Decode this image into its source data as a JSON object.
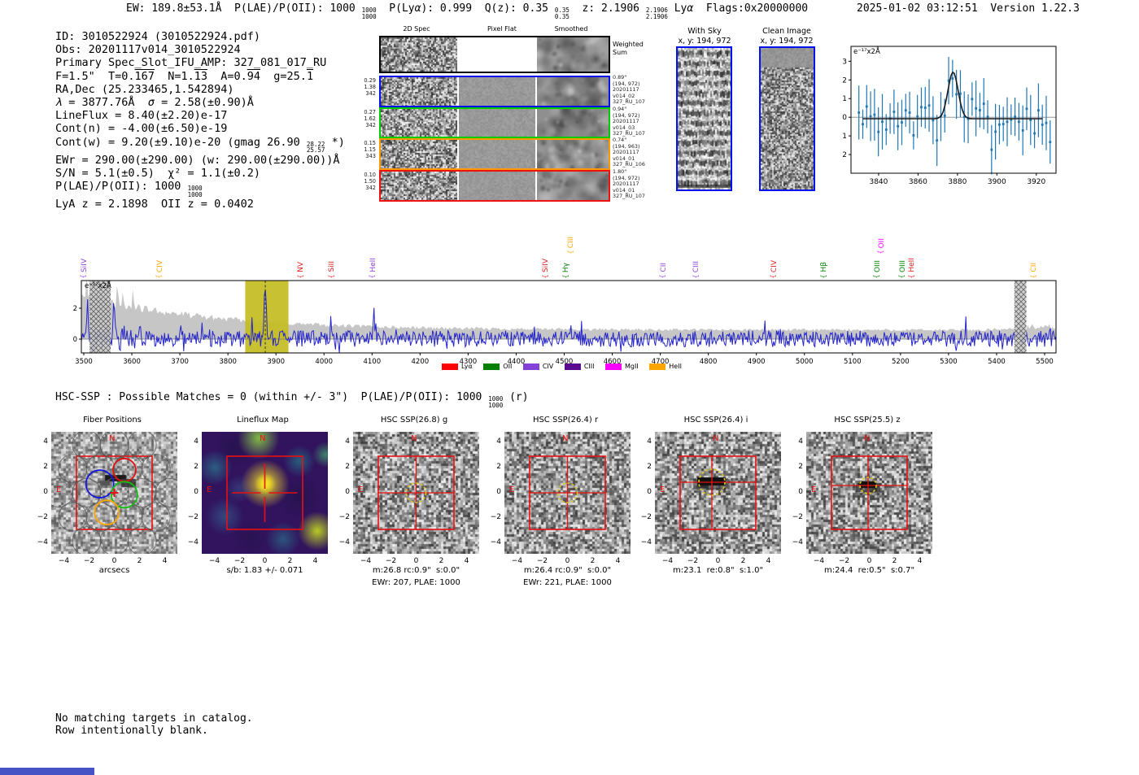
{
  "header": {
    "left_segments": [
      {
        "t": "EW: 189.8±53.1Å  P(LAE)/P(OII): 1000 "
      },
      {
        "f": [
          "1000",
          "1000"
        ]
      },
      {
        "t": "  P(Ly"
      },
      {
        "t": "α",
        "s": "i"
      },
      {
        "t": "): 0.999  Q(z): 0.35 "
      },
      {
        "f": [
          "0.35",
          "0.35"
        ]
      },
      {
        "t": "  z: 2.1906 "
      },
      {
        "f": [
          "2.1906",
          "2.1906"
        ]
      },
      {
        "t": " Ly"
      },
      {
        "t": "α",
        "s": "i"
      },
      {
        "t": "  Flags:0x20000000"
      }
    ],
    "right": "2025-01-02 03:12:51  Version 1.22.3"
  },
  "info_lines": [
    [
      {
        "t": "ID: 3010522924 (3010522924.pdf)"
      }
    ],
    [
      {
        "t": "Obs: 20201117v014_3010522924"
      }
    ],
    [
      {
        "t": "Primary Spec_Slot_IFU_AMP: 327_081_017_RU"
      }
    ],
    [
      {
        "t": "F=1.5\"  T=0."
      },
      {
        "t": "167",
        "s": "o"
      },
      {
        "t": "  N=1."
      },
      {
        "t": "13",
        "s": "o"
      },
      {
        "t": "  A=0."
      },
      {
        "t": "94",
        "s": "o"
      },
      {
        "t": "  g=25."
      },
      {
        "t": "1",
        "s": "o"
      }
    ],
    [
      {
        "t": "RA,Dec (25.233465,1.542894)"
      }
    ],
    [
      {
        "t": "λ",
        "s": "i"
      },
      {
        "t": " = 3877.76Å  "
      },
      {
        "t": "σ",
        "s": "i"
      },
      {
        "t": " = 2.58(±0.90)Å"
      }
    ],
    [
      {
        "t": "LineFlux = 8.40(±2.20)e-17"
      }
    ],
    [
      {
        "t": "Cont(n) = -4.00(±6.50)e-19"
      }
    ],
    [
      {
        "t": "Cont(w) = 9.20(±9.10)e-20 (gmag 26.90 "
      },
      {
        "f": [
          "28.22",
          "25.57"
        ]
      },
      {
        "t": " *)"
      }
    ],
    [
      {
        "t": "EWr = 290.00(±290.00) (w: 290.00(±290.00))Å"
      }
    ],
    [
      {
        "t": "S/N = 5.1(±0.5)  χ² = 1.1(±0.2)"
      }
    ],
    [
      {
        "t": "P(LAE)/P(OII): 1000 "
      },
      {
        "f": [
          "1000",
          "1000"
        ]
      }
    ],
    [
      {
        "t": "LyA z = 2.1898  OII z = 0.0402"
      }
    ]
  ],
  "cutouts": {
    "col_titles": [
      "2D Spec",
      "Pixel Flat",
      "Smoothed"
    ],
    "weighted_sum": [
      "Weighted",
      "Sum"
    ],
    "rows": [
      {
        "border": "#000000",
        "left": [],
        "right": []
      },
      {
        "border": "#0011ee",
        "left": [
          "0.29",
          "1.38",
          "342"
        ],
        "right": [
          "0.89\"",
          "(194, 972)",
          "20201117",
          "v014_02",
          "327_RU_107"
        ]
      },
      {
        "border": "#00cc00",
        "left": [
          "0.27",
          "1.62",
          "342"
        ],
        "right": [
          "0.94\"",
          "(194, 972)",
          "20201117",
          "v014_03",
          "327_RU_107"
        ]
      },
      {
        "border": "#ff9900",
        "left": [
          "0.15",
          "1.15",
          "343"
        ],
        "right": [
          "0.74\"",
          "(194, 963)",
          "20201117",
          "v014_01",
          "327_RU_106"
        ]
      },
      {
        "border": "#ee1111",
        "left": [
          "0.10",
          "1.50",
          "342"
        ],
        "right": [
          "1.80\"",
          "(194, 972)",
          "20201117",
          "v014_01",
          "327_RU_107"
        ]
      }
    ]
  },
  "sky_panels": [
    {
      "title": "With Sky",
      "subtitle": "x, y: 194, 972",
      "pattern": "stripes"
    },
    {
      "title": "Clean Image",
      "subtitle": "x, y: 194, 972",
      "pattern": "noise"
    }
  ],
  "chart_data": [
    {
      "id": "zoom_fit",
      "type": "scatter",
      "title": "emission line zoom with gaussian fit",
      "unit_label": "e⁻¹⁷x2Å",
      "xlim": [
        3826,
        3930
      ],
      "ylim": [
        -3.0,
        3.8
      ],
      "xticks": [
        3840,
        3860,
        3880,
        3900,
        3920
      ],
      "yticks": [
        -2,
        -1,
        0,
        1,
        2,
        3
      ],
      "fit": {
        "center": 3877.76,
        "sigma": 2.58,
        "amplitude": 2.5,
        "baseline": -0.08,
        "x_start": 3832,
        "x_end": 3924
      },
      "point_color": "#1f77b4",
      "fit_color": "#1a1a1a"
    },
    {
      "id": "full_spectrum",
      "type": "line",
      "title": "full 1D spectrum",
      "unit_label": "e⁻¹⁷x2Å",
      "xlim": [
        3494,
        5524
      ],
      "ylim": [
        -0.95,
        3.75
      ],
      "xticks": [
        3500,
        3600,
        3700,
        3800,
        3900,
        4000,
        4100,
        4200,
        4300,
        4400,
        4500,
        4600,
        4700,
        4800,
        4900,
        5000,
        5100,
        5200,
        5300,
        5400,
        5500
      ],
      "yticks": [
        0,
        2
      ],
      "primary_peak": {
        "x": 3877.76,
        "height": 3.1
      },
      "highlight_band": {
        "x0": 3836,
        "x1": 3926,
        "color": "#c3bc20",
        "dashed_center": 3877.76
      },
      "masked_regions": [
        [
          3512,
          3556
        ],
        [
          5437,
          5462
        ]
      ],
      "line_labels": [
        {
          "text": "SiIV",
          "x": 3505,
          "color": "#8b45d6",
          "tier": 0
        },
        {
          "text": "CIV",
          "x": 3662,
          "color": "#ffa500",
          "tier": 0
        },
        {
          "text": "NV",
          "x": 3956,
          "color": "#dd2222",
          "tier": 0
        },
        {
          "text": "SiII",
          "x": 4020,
          "color": "#dd2222",
          "tier": 0
        },
        {
          "text": "HeII",
          "x": 4106,
          "color": "#8b45d6",
          "tier": 0
        },
        {
          "text": "SiIV",
          "x": 4466,
          "color": "#dd2222",
          "tier": 0
        },
        {
          "text": "Hγ",
          "x": 4508,
          "color": "#007f00",
          "tier": 0
        },
        {
          "text": "CIII",
          "x": 4518,
          "color": "#ffa500",
          "tier": 1
        },
        {
          "text": "CII",
          "x": 4710,
          "color": "#8b45d6",
          "tier": 0
        },
        {
          "text": "CIII",
          "x": 4779,
          "color": "#8b45d6",
          "tier": 0
        },
        {
          "text": "CIV",
          "x": 4941,
          "color": "#dd2222",
          "tier": 0
        },
        {
          "text": "Hβ",
          "x": 5045,
          "color": "#007f00",
          "tier": 0
        },
        {
          "text": "OII",
          "x": 5164,
          "color": "#ff00ff",
          "tier": 1
        },
        {
          "text": "OIII",
          "x": 5156,
          "color": "#007f00",
          "tier": 0
        },
        {
          "text": "OIII",
          "x": 5208,
          "color": "#007f00",
          "tier": 0
        },
        {
          "text": "HeII",
          "x": 5228,
          "color": "#dd2222",
          "tier": 0
        },
        {
          "text": "CII",
          "x": 5482,
          "color": "#ffa500",
          "tier": 0
        }
      ],
      "legend": [
        {
          "label": "Lyα",
          "color": "#ff0000"
        },
        {
          "label": "OII",
          "color": "#007f00"
        },
        {
          "label": "CIV",
          "color": "#8540d8"
        },
        {
          "label": "CIII",
          "color": "#5a0b8e"
        },
        {
          "label": "MgII",
          "color": "#ff00ff"
        },
        {
          "label": "HeII",
          "color": "#ffa500"
        }
      ],
      "line_color": "#2424cb",
      "envelope_color": "#c6c6c6"
    }
  ],
  "hsc_segments": [
    {
      "t": "HSC-SSP : Possible Matches = 0 (within +/- 3\")  P(LAE)/P(OII): 1000 "
    },
    {
      "f": [
        "1000",
        "1000"
      ]
    },
    {
      "t": " (r)"
    }
  ],
  "panels": {
    "xticks": [
      -4,
      -2,
      0,
      2,
      4
    ],
    "yticks": [
      4,
      2,
      0,
      -2,
      -4
    ],
    "compass": {
      "north": "N",
      "east": "E"
    },
    "items": [
      {
        "title": "Fiber Positions",
        "captions": [
          "arcsecs"
        ],
        "kind": "fiber"
      },
      {
        "title": "Lineflux Map",
        "captions": [
          "s/b: 1.83 +/- 0.071"
        ],
        "kind": "lineflux"
      },
      {
        "title": "HSC SSP(26.8) g",
        "captions": [
          "m:26.8 rc:0.9\"  s:0.0\"",
          "EWr: 207, PLAE: 1000"
        ],
        "kind": "hsc"
      },
      {
        "title": "HSC SSP(26.4) r",
        "captions": [
          "m:26.4 rc:0.9\"  s:0.0\"",
          "EWr: 221, PLAE: 1000"
        ],
        "kind": "hsc"
      },
      {
        "title": "HSC SSP(26.4) i",
        "captions": [
          "m:23.1  re:0.8\"  s:1.0\""
        ],
        "kind": "hsc-smear"
      },
      {
        "title": "HSC SSP(25.5) z",
        "captions": [
          "m:24.4  re:0.5\"  s:0.7\""
        ],
        "kind": "hsc-smear-small"
      }
    ]
  },
  "footer_lines": [
    "No matching targets in catalog.",
    "Row intentionally blank."
  ],
  "colors": {
    "panel_red": "#e81010",
    "dashed_circle_yellow": "#e2c51d",
    "footer_bar_blue": "#4553c4",
    "sky_border_blue": "#0011ee"
  }
}
